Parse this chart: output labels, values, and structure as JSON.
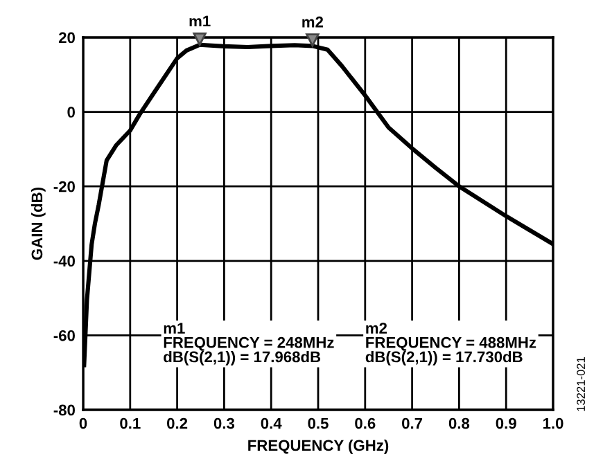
{
  "chart_data": {
    "type": "line",
    "xlabel": "FREQUENCY (GHz)",
    "ylabel": "GAIN (dB)",
    "x": [
      0.002,
      0.008,
      0.018,
      0.025,
      0.033,
      0.05,
      0.07,
      0.1,
      0.12,
      0.15,
      0.2,
      0.22,
      0.248,
      0.3,
      0.35,
      0.4,
      0.45,
      0.488,
      0.52,
      0.55,
      0.6,
      0.65,
      0.7,
      0.75,
      0.8,
      0.9,
      1.0
    ],
    "series": [
      {
        "color": "#000000",
        "values": [
          -68,
          -50.5,
          -35.6,
          -30,
          -25,
          -13,
          -9,
          -5,
          -0.7,
          5,
          14.4,
          16.5,
          18.0,
          17.6,
          17.4,
          17.7,
          17.9,
          17.7,
          16.7,
          12.4,
          4.4,
          -4.2,
          -9.8,
          -15,
          -20,
          -28,
          -35.5
        ]
      }
    ],
    "xlim": [
      0,
      1.0
    ],
    "ylim": [
      -80,
      20
    ],
    "xticks": [
      0,
      0.1,
      0.2,
      0.3,
      0.4,
      0.5,
      0.6,
      0.7,
      0.8,
      0.9,
      {
        "value": 1.0,
        "label": "1.0"
      }
    ],
    "yticks": [
      -80,
      -60,
      -40,
      -20,
      0,
      20
    ],
    "grid": true,
    "legend": false,
    "marker": "none",
    "line_style": "solid",
    "annotations": [
      {
        "text": "m1",
        "x": 0.248,
        "y": 17.968
      },
      {
        "text": "m2",
        "x": 0.488,
        "y": 17.73
      },
      "m1\nFREQUENCY = 248MHz\ndB(S(2,1)) = 17.968dB",
      "m2\nFREQUENCY = 488MHz\ndB(S(2,1)) = 17.730dB",
      "13221-021"
    ]
  }
}
